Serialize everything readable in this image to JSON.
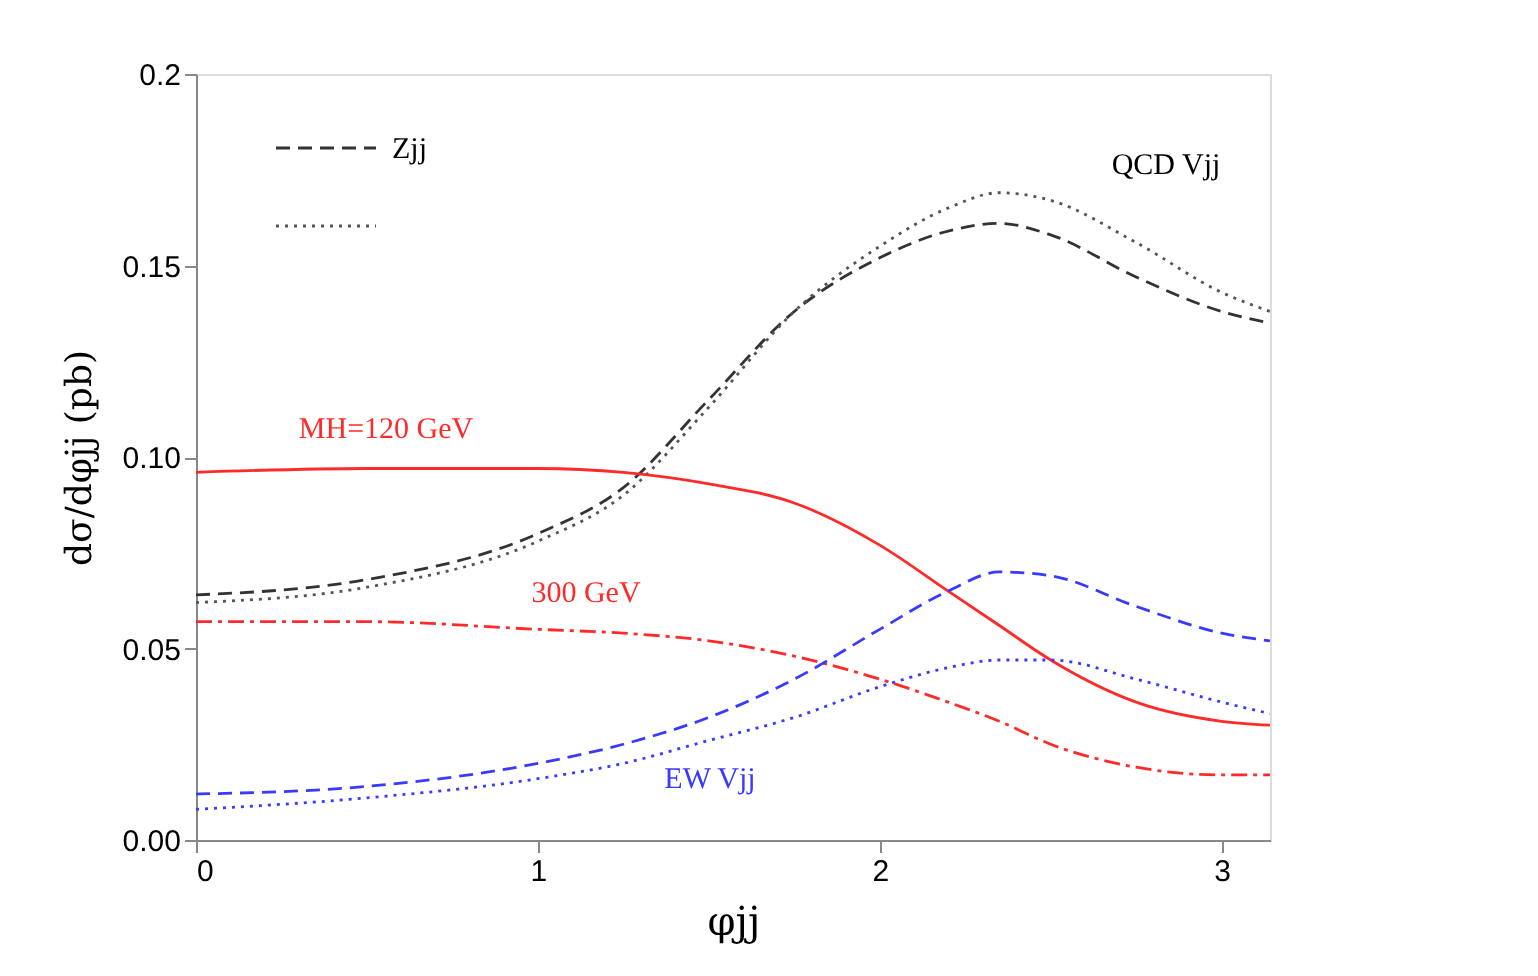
{
  "chart_data": {
    "type": "line",
    "xlabel": "φjj",
    "ylabel": "dσ/dφjj (pb)",
    "xlim": [
      0,
      3.1416
    ],
    "xticks": [
      0,
      1,
      2,
      3
    ],
    "ylim": [
      0,
      0.2
    ],
    "yticks": [
      {
        "value": 0,
        "label": "0.00"
      },
      {
        "value": 0.05,
        "label": "0.05"
      },
      {
        "value": 0.1,
        "label": "0.10"
      },
      {
        "value": 0.15,
        "label": "0.15"
      },
      {
        "value": 0.2,
        "label": "0.2"
      }
    ],
    "grid": false,
    "legend": "top left",
    "x": [
      0,
      0.5,
      1.0,
      1.25,
      1.5,
      1.75,
      2.0,
      2.2,
      2.35,
      2.5,
      2.75,
      3.0,
      3.1416
    ],
    "series": [
      {
        "name": "Zjj",
        "color": "#333333",
        "line_style": "dashed",
        "values": [
          0.064,
          0.068,
          0.08,
          0.092,
          0.115,
          0.138,
          0.152,
          0.159,
          0.161,
          0.158,
          0.147,
          0.138,
          0.135
        ]
      },
      {
        "color": "#555555",
        "line_style": "dotted",
        "values": [
          0.062,
          0.066,
          0.078,
          0.09,
          0.113,
          0.138,
          0.155,
          0.165,
          0.169,
          0.167,
          0.156,
          0.143,
          0.138
        ]
      },
      {
        "color": "#ff2a2a",
        "line_style": "solid",
        "values": [
          0.096,
          0.097,
          0.097,
          0.096,
          0.093,
          0.088,
          0.077,
          0.065,
          0.056,
          0.047,
          0.036,
          0.031,
          0.03
        ]
      },
      {
        "color": "#ff2a2a",
        "line_style": "dashdot",
        "values": [
          0.057,
          0.057,
          0.055,
          0.054,
          0.052,
          0.048,
          0.042,
          0.036,
          0.031,
          0.025,
          0.019,
          0.017,
          0.017
        ]
      },
      {
        "color": "#3a3aff",
        "line_style": "dashed",
        "values": [
          0.012,
          0.014,
          0.02,
          0.025,
          0.032,
          0.042,
          0.055,
          0.065,
          0.07,
          0.069,
          0.061,
          0.054,
          0.052
        ]
      },
      {
        "color": "#3a3aff",
        "line_style": "dotted",
        "values": [
          0.008,
          0.011,
          0.016,
          0.02,
          0.026,
          0.032,
          0.04,
          0.045,
          0.047,
          0.047,
          0.042,
          0.036,
          0.033
        ]
      }
    ],
    "annotations": [
      "MH=120 GeV",
      "300 GeV",
      "EW Vjj",
      "QCD Vjj"
    ]
  }
}
